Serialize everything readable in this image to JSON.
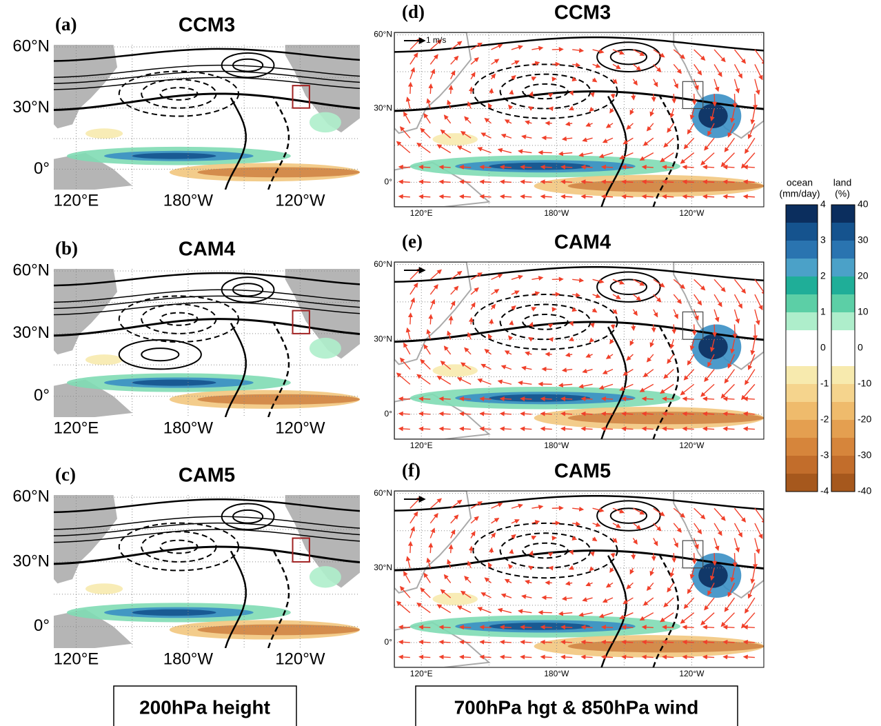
{
  "panels": [
    {
      "letter": "(a)",
      "title": "CCM3",
      "lat_ticks": [
        {
          "value": 60,
          "label": "60°N"
        },
        {
          "value": 30,
          "label": "30°N"
        },
        {
          "value": 0,
          "label": "0°"
        }
      ],
      "lon_ticks": [
        {
          "value": 120,
          "label": "120°E"
        },
        {
          "value": 180,
          "label": "180°W"
        },
        {
          "value": 240,
          "label": "120°W"
        }
      ]
    },
    {
      "letter": "(b)",
      "title": "CAM4",
      "lat_ticks": [
        {
          "value": 60,
          "label": "60°N"
        },
        {
          "value": 30,
          "label": "30°N"
        },
        {
          "value": 0,
          "label": "0°"
        }
      ],
      "lon_ticks": [
        {
          "value": 120,
          "label": "120°E"
        },
        {
          "value": 180,
          "label": "180°W"
        },
        {
          "value": 240,
          "label": "120°W"
        }
      ]
    },
    {
      "letter": "(c)",
      "title": "CAM5",
      "lat_ticks": [
        {
          "value": 60,
          "label": "60°N"
        },
        {
          "value": 30,
          "label": "30°N"
        },
        {
          "value": 0,
          "label": "0°"
        }
      ],
      "lon_ticks": [
        {
          "value": 120,
          "label": "120°E"
        },
        {
          "value": 180,
          "label": "180°W"
        },
        {
          "value": 240,
          "label": "120°W"
        }
      ]
    },
    {
      "letter": "(d)",
      "title": "CCM3",
      "reference_arrow": "1 m/s",
      "lat_ticks": [
        {
          "value": 60,
          "label": "60°N"
        },
        {
          "value": 30,
          "label": "30°N"
        },
        {
          "value": 0,
          "label": "0°"
        }
      ],
      "lon_ticks": [
        {
          "value": 120,
          "label": "120°E"
        },
        {
          "value": 180,
          "label": "180°W"
        },
        {
          "value": 240,
          "label": "120°W"
        }
      ]
    },
    {
      "letter": "(e)",
      "title": "CAM4",
      "lat_ticks": [
        {
          "value": 60,
          "label": "60°N"
        },
        {
          "value": 30,
          "label": "30°N"
        },
        {
          "value": 0,
          "label": "0°"
        }
      ],
      "lon_ticks": [
        {
          "value": 120,
          "label": "120°E"
        },
        {
          "value": 180,
          "label": "180°W"
        },
        {
          "value": 240,
          "label": "120°W"
        }
      ]
    },
    {
      "letter": "(f)",
      "title": "CAM5",
      "lat_ticks": [
        {
          "value": 60,
          "label": "60°N"
        },
        {
          "value": 30,
          "label": "30°N"
        },
        {
          "value": 0,
          "label": "0°"
        }
      ],
      "lon_ticks": [
        {
          "value": 120,
          "label": "120°E"
        },
        {
          "value": 180,
          "label": "180°W"
        },
        {
          "value": 240,
          "label": "120°W"
        }
      ]
    }
  ],
  "colorbar": {
    "colors": [
      "#0b2e5e",
      "#15538e",
      "#2a74b0",
      "#4ba1c8",
      "#1fae98",
      "#5ccfa6",
      "#aeeecb",
      "#ffffff",
      "#ffffff",
      "#f7eaae",
      "#f5d48d",
      "#efbb6c",
      "#e49f50",
      "#d6853b",
      "#c26d2b",
      "#a6581d"
    ],
    "ocean": {
      "title_lines": [
        "ocean",
        "(mm/day)"
      ],
      "ticks": [
        "4",
        "3",
        "2",
        "1",
        "0",
        "-1",
        "-2",
        "-3",
        "-4"
      ]
    },
    "land": {
      "title_lines": [
        "land",
        "(%)"
      ],
      "ticks": [
        "40",
        "30",
        "20",
        "10",
        "0",
        "-10",
        "-20",
        "-30",
        "-40"
      ]
    }
  },
  "captions": [
    "200hPa height",
    "700hPa hgt & 850hPa wind"
  ]
}
